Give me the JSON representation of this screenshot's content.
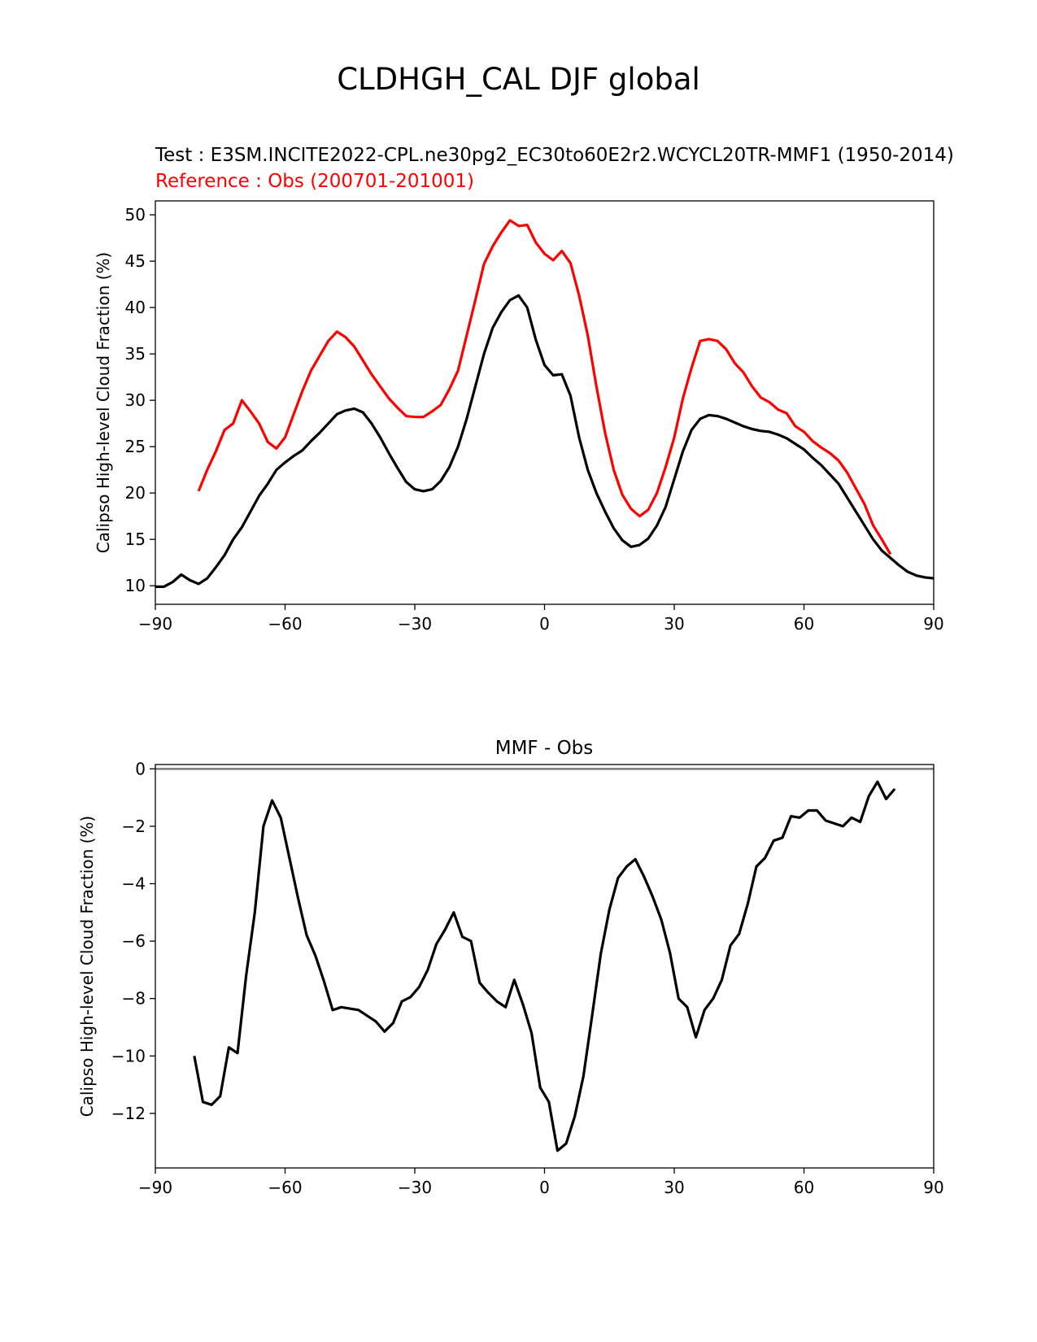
{
  "figure": {
    "title": "CLDHGH_CAL DJF global",
    "test_label": "Test : E3SM.INCITE2022-CPL.ne30pg2_EC30to60E2r2.WCYCL20TR-MMF1 (1950-2014)",
    "reference_label": "Reference : Obs (200701-201001)"
  },
  "colors": {
    "test": "#000000",
    "reference": "#ff0000",
    "zero_line": "#808080"
  },
  "chart_data": [
    {
      "type": "line",
      "title": "",
      "xlabel": "",
      "ylabel": "Calipso High-level Cloud Fraction (%)",
      "xlim": [
        -90,
        90
      ],
      "ylim": [
        8,
        51.5
      ],
      "xticks": [
        -90,
        -60,
        -30,
        0,
        30,
        60,
        90
      ],
      "xtick_labels": [
        "−90",
        "−60",
        "−30",
        "0",
        "30",
        "60",
        "90"
      ],
      "yticks": [
        10,
        15,
        20,
        25,
        30,
        35,
        40,
        45,
        50
      ],
      "ytick_labels": [
        "10",
        "15",
        "20",
        "25",
        "30",
        "35",
        "40",
        "45",
        "50"
      ],
      "series": [
        {
          "name": "Test",
          "color": "#000000",
          "x": [
            -90,
            -88,
            -86,
            -84,
            -82,
            -80,
            -78,
            -76,
            -74,
            -72,
            -70,
            -68,
            -66,
            -64,
            -62,
            -60,
            -58,
            -56,
            -54,
            -52,
            -50,
            -48,
            -46,
            -44,
            -42,
            -40,
            -38,
            -36,
            -34,
            -32,
            -30,
            -28,
            -26,
            -24,
            -22,
            -20,
            -18,
            -16,
            -14,
            -12,
            -10,
            -8,
            -6,
            -4,
            -2,
            0,
            2,
            4,
            6,
            8,
            10,
            12,
            14,
            16,
            18,
            20,
            22,
            24,
            26,
            28,
            30,
            32,
            34,
            36,
            38,
            40,
            42,
            44,
            46,
            48,
            50,
            52,
            54,
            56,
            58,
            60,
            62,
            64,
            66,
            68,
            70,
            72,
            74,
            76,
            78,
            80,
            82,
            84,
            86,
            88,
            90
          ],
          "y": [
            9.9,
            9.9,
            10.4,
            11.2,
            10.6,
            10.2,
            10.8,
            12.0,
            13.3,
            15.0,
            16.3,
            18.0,
            19.7,
            21.0,
            22.5,
            23.3,
            24.0,
            24.6,
            25.6,
            26.5,
            27.5,
            28.5,
            28.9,
            29.1,
            28.7,
            27.5,
            26.0,
            24.3,
            22.7,
            21.2,
            20.4,
            20.2,
            20.4,
            21.3,
            22.8,
            25.0,
            28.0,
            31.5,
            35.0,
            37.8,
            39.5,
            40.8,
            41.3,
            40.0,
            36.5,
            33.8,
            32.7,
            32.8,
            30.5,
            26.0,
            22.5,
            20.0,
            18.0,
            16.2,
            14.9,
            14.2,
            14.4,
            15.1,
            16.5,
            18.5,
            21.5,
            24.5,
            26.8,
            28.0,
            28.4,
            28.3,
            28.0,
            27.6,
            27.2,
            26.9,
            26.7,
            26.6,
            26.3,
            25.9,
            25.3,
            24.7,
            23.8,
            23.0,
            22.0,
            21.0,
            19.5,
            18.0,
            16.5,
            15.0,
            13.8,
            13.0,
            12.2,
            11.5,
            11.1,
            10.9,
            10.8
          ]
        },
        {
          "name": "Reference",
          "color": "#ff0000",
          "x": [
            -80,
            -78,
            -76,
            -74,
            -72,
            -70,
            -68,
            -66,
            -64,
            -62,
            -60,
            -58,
            -56,
            -54,
            -52,
            -50,
            -48,
            -46,
            -44,
            -42,
            -40,
            -38,
            -36,
            -34,
            -32,
            -30,
            -28,
            -26,
            -24,
            -22,
            -20,
            -18,
            -16,
            -14,
            -12,
            -10,
            -8,
            -6,
            -4,
            -2,
            0,
            2,
            4,
            6,
            8,
            10,
            12,
            14,
            16,
            18,
            20,
            22,
            24,
            26,
            28,
            30,
            32,
            34,
            36,
            38,
            40,
            42,
            44,
            46,
            48,
            50,
            52,
            54,
            56,
            58,
            60,
            62,
            64,
            66,
            68,
            70,
            72,
            74,
            76,
            78,
            80
          ],
          "y": [
            20.2,
            22.5,
            24.5,
            26.8,
            27.5,
            30.0,
            28.8,
            27.5,
            25.5,
            24.8,
            26.0,
            28.5,
            31.0,
            33.2,
            34.8,
            36.4,
            37.4,
            36.8,
            35.8,
            34.3,
            32.8,
            31.5,
            30.2,
            29.2,
            28.3,
            28.2,
            28.2,
            28.8,
            29.5,
            31.2,
            33.2,
            37.0,
            40.8,
            44.7,
            46.6,
            48.1,
            49.4,
            48.8,
            48.9,
            47.0,
            45.8,
            45.1,
            46.1,
            44.8,
            41.3,
            37.0,
            31.5,
            26.5,
            22.5,
            19.8,
            18.3,
            17.5,
            18.2,
            20.0,
            22.8,
            26.0,
            30.2,
            33.5,
            36.4,
            36.6,
            36.4,
            35.5,
            34.0,
            33.0,
            31.5,
            30.3,
            29.8,
            29.0,
            28.6,
            27.2,
            26.6,
            25.6,
            24.9,
            24.3,
            23.5,
            22.2,
            20.5,
            18.8,
            16.5,
            15.0,
            13.4
          ]
        }
      ]
    },
    {
      "type": "line",
      "title": "MMF - Obs",
      "xlabel": "",
      "ylabel": "Calipso High-level Cloud Fraction (%)",
      "xlim": [
        -90,
        90
      ],
      "ylim": [
        -13.9,
        0.15
      ],
      "xticks": [
        -90,
        -60,
        -30,
        0,
        30,
        60,
        90
      ],
      "xtick_labels": [
        "−90",
        "−60",
        "−30",
        "0",
        "30",
        "60",
        "90"
      ],
      "yticks": [
        0,
        -2,
        -4,
        -6,
        -8,
        -10,
        -12
      ],
      "ytick_labels": [
        "0",
        "−2",
        "−4",
        "−6",
        "−8",
        "−10",
        "−12"
      ],
      "reference_line": 0,
      "series": [
        {
          "name": "MMF - Obs",
          "color": "#000000",
          "x": [
            -81,
            -79,
            -77,
            -75,
            -73,
            -71,
            -69,
            -67,
            -65,
            -63,
            -61,
            -59,
            -57,
            -55,
            -53,
            -51,
            -49,
            -47,
            -45,
            -43,
            -41,
            -39,
            -37,
            -35,
            -33,
            -31,
            -29,
            -27,
            -25,
            -23,
            -21,
            -19,
            -17,
            -15,
            -13,
            -11,
            -9,
            -7,
            -5,
            -3,
            -1,
            1,
            3,
            5,
            7,
            9,
            11,
            13,
            15,
            17,
            19,
            21,
            23,
            25,
            27,
            29,
            31,
            33,
            35,
            37,
            39,
            41,
            43,
            45,
            47,
            49,
            51,
            53,
            55,
            57,
            59,
            61,
            63,
            65,
            67,
            69,
            71,
            73,
            75,
            77,
            79,
            81
          ],
          "y": [
            -10.0,
            -11.6,
            -11.7,
            -11.4,
            -9.7,
            -9.9,
            -7.2,
            -5.0,
            -2.0,
            -1.1,
            -1.7,
            -3.1,
            -4.5,
            -5.8,
            -6.5,
            -7.4,
            -8.4,
            -8.3,
            -8.35,
            -8.4,
            -8.6,
            -8.8,
            -9.15,
            -8.85,
            -8.1,
            -7.95,
            -7.6,
            -7.0,
            -6.1,
            -5.6,
            -5.0,
            -5.85,
            -6.0,
            -7.45,
            -7.8,
            -8.1,
            -8.3,
            -7.35,
            -8.2,
            -9.2,
            -11.1,
            -11.6,
            -13.3,
            -13.05,
            -12.1,
            -10.7,
            -8.6,
            -6.45,
            -4.9,
            -3.8,
            -3.4,
            -3.15,
            -3.75,
            -4.45,
            -5.25,
            -6.4,
            -8.0,
            -8.3,
            -9.35,
            -8.4,
            -8.0,
            -7.35,
            -6.15,
            -5.75,
            -4.7,
            -3.4,
            -3.1,
            -2.5,
            -2.4,
            -1.65,
            -1.7,
            -1.45,
            -1.45,
            -1.8,
            -1.9,
            -2.0,
            -1.7,
            -1.85,
            -0.95,
            -0.45,
            -1.05,
            -0.7
          ]
        }
      ]
    }
  ]
}
